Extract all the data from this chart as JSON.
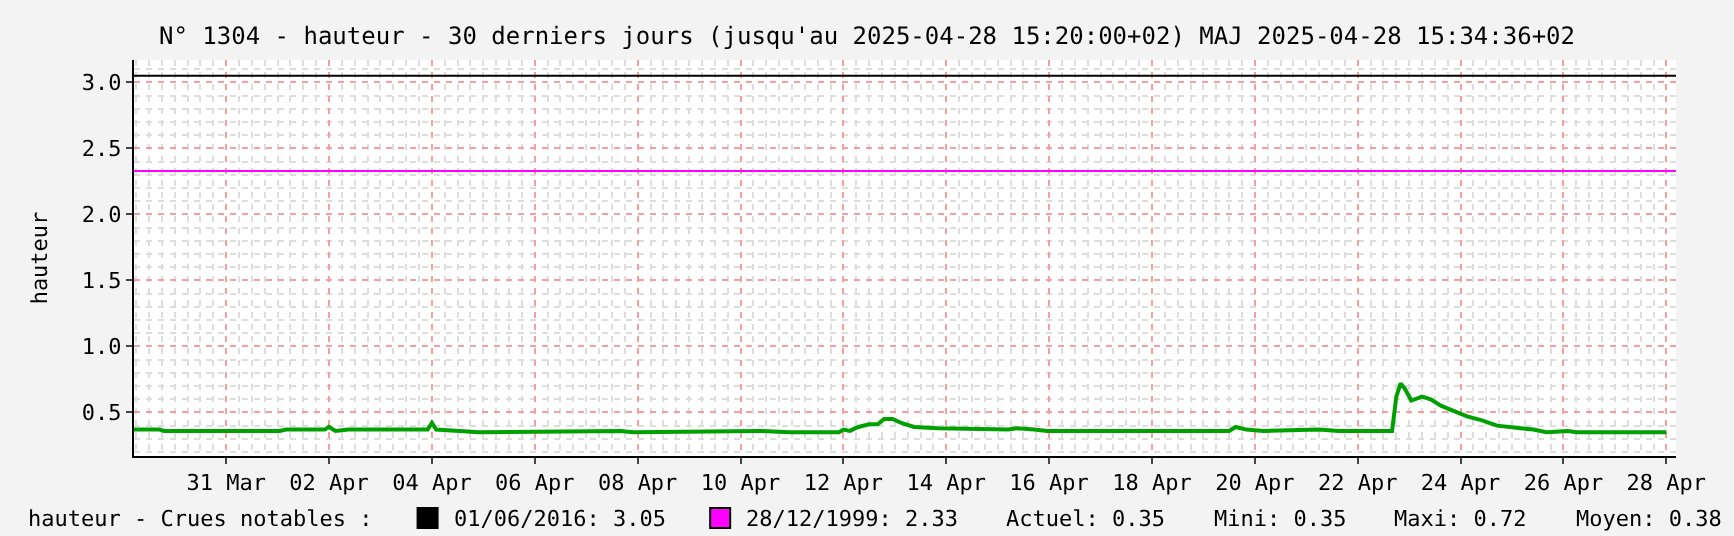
{
  "chart_data": {
    "type": "line",
    "title": "N° 1304 - hauteur - 30 derniers jours (jusqu'au 2025-04-28 15:20:00+02) MAJ 2025-04-28 15:34:36+02",
    "ylabel": "hauteur",
    "series": [
      {
        "color": "#00a000",
        "x": [
          "2025-03-29T05:00",
          "2025-03-29T17:00",
          "2025-03-29T19:00",
          "2025-04-01T01:00",
          "2025-04-01T04:00",
          "2025-04-01T22:00",
          "2025-04-02T00:00",
          "2025-04-02T03:00",
          "2025-04-02T09:00",
          "2025-04-03T22:00",
          "2025-04-04T00:00",
          "2025-04-04T02:00",
          "2025-04-04T22:00",
          "2025-04-07T16:00",
          "2025-04-07T22:00",
          "2025-04-10T09:00",
          "2025-04-10T23:00",
          "2025-04-11T22:00",
          "2025-04-12T00:00",
          "2025-04-12T03:00",
          "2025-04-12T07:00",
          "2025-04-12T12:00",
          "2025-04-12T16:00",
          "2025-04-12T19:00",
          "2025-04-12T23:00",
          "2025-04-13T03:00",
          "2025-04-13T09:00",
          "2025-04-13T20:00",
          "2025-04-15T05:00",
          "2025-04-15T09:00",
          "2025-04-15T17:00",
          "2025-04-15T23:00",
          "2025-04-19T12:00",
          "2025-04-19T15:00",
          "2025-04-19T20:00",
          "2025-04-20T04:00",
          "2025-04-21T06:00",
          "2025-04-21T15:00",
          "2025-04-22T16:00",
          "2025-04-22T18:00",
          "2025-04-22T20:00",
          "2025-04-22T22:00",
          "2025-04-23T01:00",
          "2025-04-23T06:00",
          "2025-04-23T10:00",
          "2025-04-23T15:00",
          "2025-04-23T21:00",
          "2025-04-24T03:00",
          "2025-04-24T10:00",
          "2025-04-24T17:00",
          "2025-04-25T04:00",
          "2025-04-25T10:00",
          "2025-04-25T16:00",
          "2025-04-26T02:00",
          "2025-04-26T06:00",
          "2025-04-28T00:00"
        ],
        "values": [
          0.37,
          0.37,
          0.36,
          0.36,
          0.37,
          0.37,
          0.39,
          0.36,
          0.37,
          0.37,
          0.42,
          0.37,
          0.35,
          0.36,
          0.35,
          0.36,
          0.35,
          0.35,
          0.37,
          0.36,
          0.39,
          0.41,
          0.41,
          0.45,
          0.45,
          0.42,
          0.39,
          0.38,
          0.37,
          0.38,
          0.37,
          0.36,
          0.36,
          0.39,
          0.37,
          0.36,
          0.37,
          0.36,
          0.36,
          0.62,
          0.72,
          0.68,
          0.59,
          0.62,
          0.6,
          0.55,
          0.51,
          0.47,
          0.44,
          0.4,
          0.38,
          0.37,
          0.35,
          0.36,
          0.35,
          0.35
        ]
      }
    ],
    "xlim": [
      "2025-03-29T05:00",
      "2025-04-28T04:30"
    ],
    "xticks": [
      {
        "value": "2025-03-31",
        "label": "31 Mar"
      },
      {
        "value": "2025-04-02",
        "label": "02 Apr"
      },
      {
        "value": "2025-04-04",
        "label": "04 Apr"
      },
      {
        "value": "2025-04-06",
        "label": "06 Apr"
      },
      {
        "value": "2025-04-08",
        "label": "08 Apr"
      },
      {
        "value": "2025-04-10",
        "label": "10 Apr"
      },
      {
        "value": "2025-04-12",
        "label": "12 Apr"
      },
      {
        "value": "2025-04-14",
        "label": "14 Apr"
      },
      {
        "value": "2025-04-16",
        "label": "16 Apr"
      },
      {
        "value": "2025-04-18",
        "label": "18 Apr"
      },
      {
        "value": "2025-04-20",
        "label": "20 Apr"
      },
      {
        "value": "2025-04-22",
        "label": "22 Apr"
      },
      {
        "value": "2025-04-24",
        "label": "24 Apr"
      },
      {
        "value": "2025-04-26",
        "label": "26 Apr"
      },
      {
        "value": "2025-04-28",
        "label": "28 Apr"
      }
    ],
    "ylim": [
      0.17,
      3.17
    ],
    "yticks": [
      0.5,
      {
        "value": 1,
        "label": "1.0"
      },
      1.5,
      {
        "value": 2,
        "label": "2.0"
      },
      2.5,
      {
        "value": 3,
        "label": "3.0"
      }
    ],
    "ref_lines": [
      {
        "axis": "y",
        "value": 3.05,
        "label": "01/06/2016: 3.05",
        "color": "#000000"
      },
      {
        "axis": "y",
        "value": 2.33,
        "label": "28/12/1999: 2.33",
        "color": "#ff00ff"
      }
    ],
    "annotations": [
      "hauteur - Crues notables :",
      "Actuel: 0.35",
      "Mini: 0.35",
      "Maxi: 0.72",
      "Moyen: 0.38"
    ],
    "grid": true,
    "legend": "bottom",
    "marker": "none",
    "line_style": "solid"
  }
}
